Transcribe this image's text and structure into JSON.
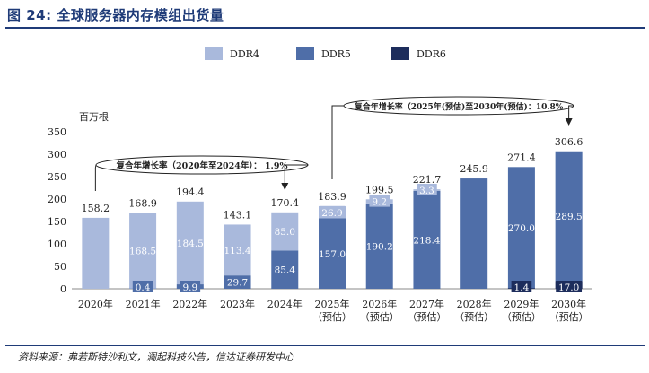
{
  "title": "图 24:  全球服务器内存模组出货量",
  "source": "资料来源：弗若斯特沙利文，澜起科技公告，信达证券研发中心",
  "colors": {
    "ddr4": "#a9b9dc",
    "ddr5": "#4f6ea8",
    "ddr6": "#1d2d5c",
    "title": "#1f3b78"
  },
  "chart_data": {
    "type": "bar",
    "stacked": true,
    "unit_label": "百万根",
    "ylim": [
      0,
      350
    ],
    "yticks": [
      0,
      50,
      100,
      150,
      200,
      250,
      300,
      350
    ],
    "categories": [
      [
        "2020年"
      ],
      [
        "2021年"
      ],
      [
        "2022年"
      ],
      [
        "2023年"
      ],
      [
        "2024年"
      ],
      [
        "2025年",
        "（预估）"
      ],
      [
        "2026年",
        "（预估）"
      ],
      [
        "2027年",
        "（预估）"
      ],
      [
        "2028年",
        "（预估）"
      ],
      [
        "2029年",
        "（预估）"
      ],
      [
        "2030年",
        "（预估）"
      ]
    ],
    "series": [
      {
        "name": "DDR6",
        "key": "ddr6",
        "values": [
          0,
          0,
          0,
          0,
          0,
          0,
          0,
          0,
          0,
          1.4,
          17.0
        ],
        "labels": [
          "",
          "",
          "",
          "",
          "",
          "",
          "",
          "",
          "",
          "1.4",
          "17.0"
        ]
      },
      {
        "name": "DDR5",
        "key": "ddr5",
        "values": [
          0,
          0.4,
          9.9,
          29.7,
          85.4,
          157.0,
          190.2,
          218.4,
          245.9,
          270.0,
          289.5
        ],
        "labels": [
          "",
          "0.4",
          "9.9",
          "29.7",
          "85.4",
          "157.0",
          "190.2",
          "218.4",
          "",
          "270.0",
          "289.5"
        ]
      },
      {
        "name": "DDR4",
        "key": "ddr4",
        "values": [
          158.2,
          168.5,
          184.5,
          113.4,
          85.0,
          26.9,
          9.2,
          3.3,
          0,
          0,
          0
        ],
        "labels": [
          "",
          "168.5",
          "184.5",
          "113.4",
          "85.0",
          "26.9",
          "9.2",
          "3.3",
          "",
          "",
          ""
        ]
      }
    ],
    "totals": [
      "158.2",
      "168.9",
      "194.4",
      "143.1",
      "170.4",
      "183.9",
      "199.5",
      "221.7",
      "245.9",
      "271.4",
      "306.6"
    ],
    "legend": [
      {
        "name": "DDR4",
        "key": "ddr4"
      },
      {
        "name": "DDR5",
        "key": "ddr5"
      },
      {
        "name": "DDR6",
        "key": "ddr6"
      }
    ],
    "legend_position": "top",
    "annotations": [
      {
        "text": "复合年增长率（2020年至2024年）：  1.9%",
        "from_category": 0,
        "to_category": 4
      },
      {
        "text": "复合年增长率（2025年(预估)至2030年(预估)：10.8%",
        "from_category": 5,
        "to_category": 10
      }
    ]
  }
}
